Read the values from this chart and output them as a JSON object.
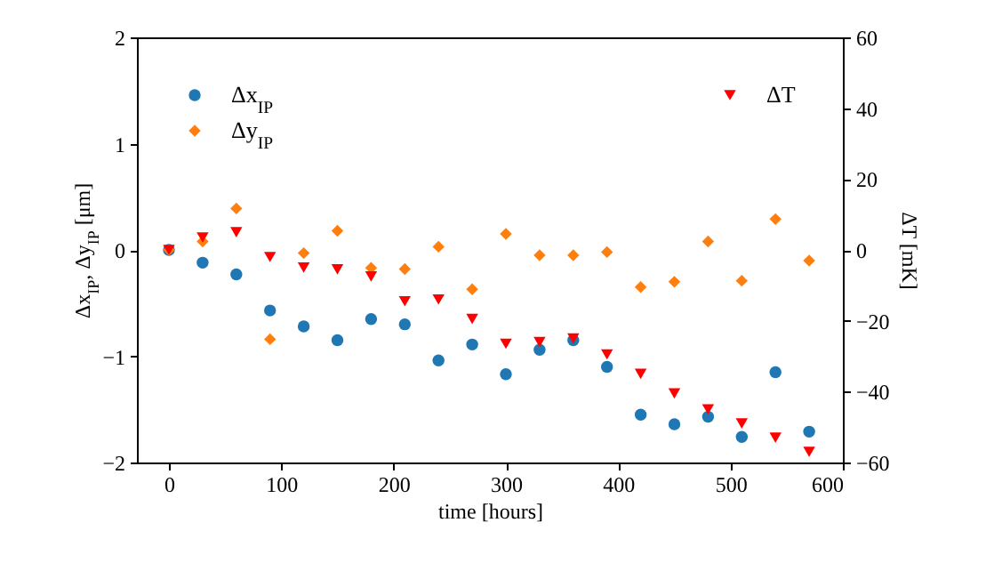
{
  "chart_data": {
    "type": "scatter",
    "xlabel": "time [hours]",
    "ylabel": "Δx$_{IP}$, Δy$_{IP}$ [μm]",
    "y2label": "ΔT [mK]",
    "x": [
      0,
      30,
      60,
      90,
      120,
      150,
      180,
      210,
      240,
      270,
      300,
      330,
      360,
      390,
      420,
      450,
      480,
      510,
      540,
      570
    ],
    "xlim": [
      -28.5,
      600
    ],
    "xticks": [
      0,
      100,
      200,
      300,
      400,
      500,
      600
    ],
    "ylim": [
      -2,
      2
    ],
    "yticks": [
      -2,
      -1,
      0,
      1,
      2
    ],
    "y2lim": [
      -60,
      60
    ],
    "y2ticks": [
      -60,
      -40,
      -20,
      0,
      20,
      40,
      60
    ],
    "grid": false,
    "legend": "top",
    "series": [
      {
        "name": "Δx$_{IP}$",
        "color": "#1f77b4",
        "marker": "circle",
        "values": [
          0,
          -0.12,
          -0.23,
          -0.57,
          -0.72,
          -0.85,
          -0.65,
          -0.7,
          -1.04,
          -0.89,
          -1.17,
          -0.94,
          -0.85,
          -1.1,
          -1.55,
          -1.64,
          -1.57,
          -1.76,
          -1.15,
          -1.71
        ]
      },
      {
        "name": "Δy$_{IP}$",
        "color": "#ff7f0e",
        "marker": "diamond",
        "values": [
          0,
          0.08,
          0.39,
          -0.84,
          -0.03,
          0.18,
          -0.17,
          -0.18,
          0.03,
          -0.37,
          0.15,
          -0.05,
          -0.05,
          -0.02,
          -0.35,
          -0.3,
          0.08,
          -0.29,
          0.29,
          -0.1
        ]
      },
      {
        "name": "ΔT",
        "color": "#ff0000",
        "marker": "triangle",
        "axis": "y2",
        "values": [
          0,
          3.5,
          5,
          -2,
          -5,
          -5.5,
          -7.5,
          -14.5,
          -14,
          -19.5,
          -26.5,
          -26,
          -25,
          -29.5,
          -35,
          -40.5,
          -45,
          -49,
          -53,
          -57
        ]
      }
    ]
  }
}
